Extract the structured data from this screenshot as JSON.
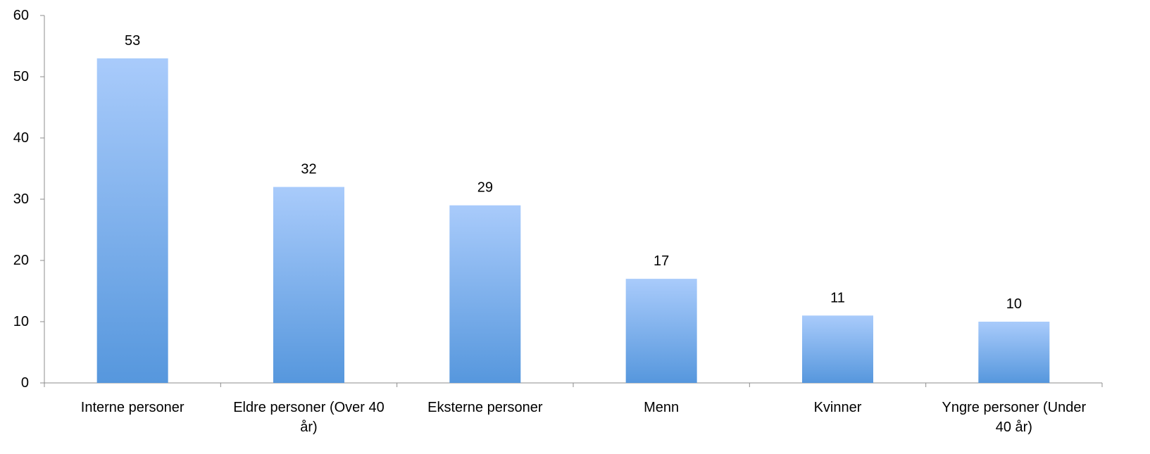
{
  "chart_data": {
    "type": "bar",
    "categories": [
      "Interne personer",
      "Eldre personer (Over 40 år)",
      "Eksterne personer",
      "Menn",
      "Kvinner",
      "Yngre personer (Under 40 år)"
    ],
    "category_label_lines": [
      [
        "Interne personer"
      ],
      [
        "Eldre personer (Over 40",
        "år)"
      ],
      [
        "Eksterne personer"
      ],
      [
        "Menn"
      ],
      [
        "Kvinner"
      ],
      [
        "Yngre personer (Under",
        "40 år)"
      ]
    ],
    "values": [
      53,
      32,
      29,
      17,
      11,
      10
    ],
    "data_labels": [
      "53",
      "32",
      "29",
      "17",
      "11",
      "10"
    ],
    "ylim": [
      0,
      60
    ],
    "y_ticks": [
      0,
      10,
      20,
      30,
      40,
      50,
      60
    ],
    "y_tick_labels": [
      "0",
      "10",
      "20",
      "30",
      "40",
      "50",
      "60"
    ],
    "title": "",
    "xlabel": "",
    "ylabel": "",
    "grid": false,
    "legend": "none",
    "colors": {
      "bar_top": "#a9cbfb",
      "bar_bottom": "#5697dd",
      "axis": "#8c8c8c",
      "text": "#000000"
    }
  }
}
